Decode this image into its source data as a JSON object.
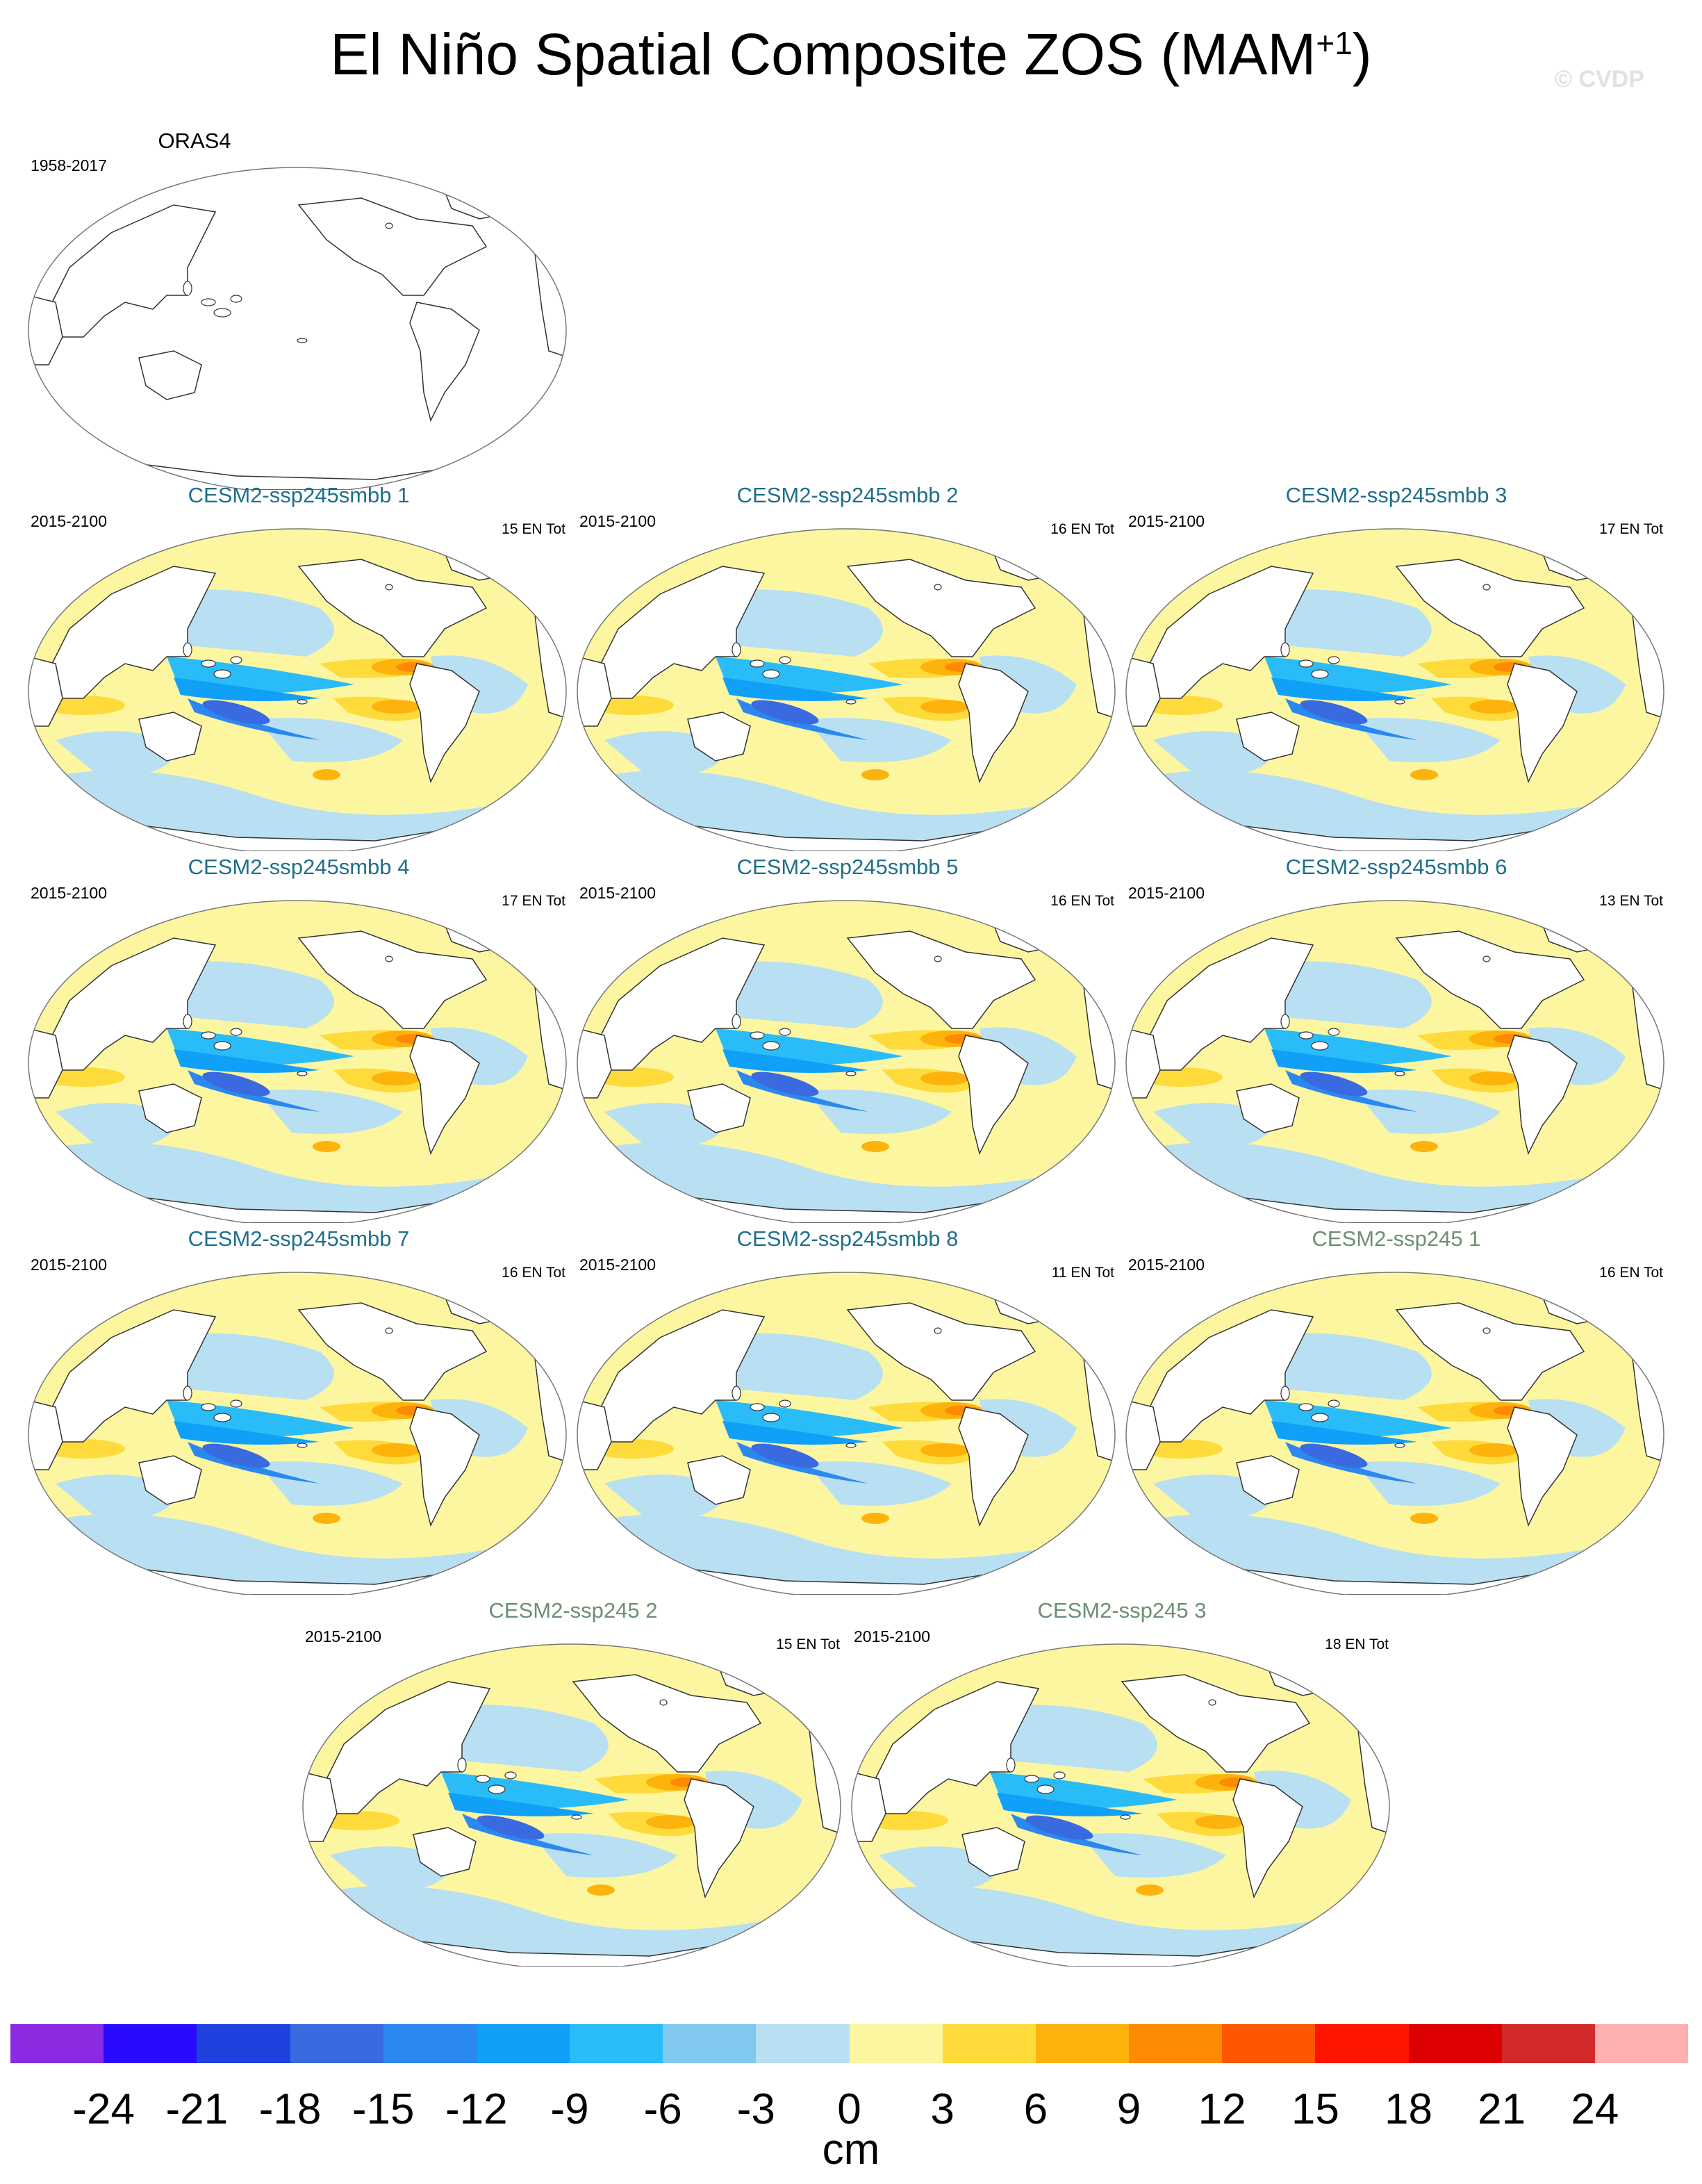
{
  "title": "El Niño Spatial Composite ZOS (MAM",
  "title_sup": "+1",
  "title_close": ")",
  "copyright": "© CVDP",
  "observation": {
    "title": "ORAS4",
    "years": "1958-2017",
    "en_tot": ""
  },
  "panels": [
    {
      "title": "CESM2-ssp245smbb 1",
      "years": "2015-2100",
      "en_tot": "15 EN Tot",
      "title_color": "#1f6f8b"
    },
    {
      "title": "CESM2-ssp245smbb 2",
      "years": "2015-2100",
      "en_tot": "16 EN Tot",
      "title_color": "#1f6f8b"
    },
    {
      "title": "CESM2-ssp245smbb 3",
      "years": "2015-2100",
      "en_tot": "17 EN Tot",
      "title_color": "#1f6f8b"
    },
    {
      "title": "CESM2-ssp245smbb 4",
      "years": "2015-2100",
      "en_tot": "17 EN Tot",
      "title_color": "#1f6f8b"
    },
    {
      "title": "CESM2-ssp245smbb 5",
      "years": "2015-2100",
      "en_tot": "16 EN Tot",
      "title_color": "#1f6f8b"
    },
    {
      "title": "CESM2-ssp245smbb 6",
      "years": "2015-2100",
      "en_tot": "13 EN Tot",
      "title_color": "#1f6f8b"
    },
    {
      "title": "CESM2-ssp245smbb 7",
      "years": "2015-2100",
      "en_tot": "16 EN Tot",
      "title_color": "#1f6f8b"
    },
    {
      "title": "CESM2-ssp245smbb 8",
      "years": "2015-2100",
      "en_tot": "11 EN Tot",
      "title_color": "#1f6f8b"
    },
    {
      "title": "CESM2-ssp245 1",
      "years": "2015-2100",
      "en_tot": "16 EN Tot",
      "title_color": "#6b8f74"
    },
    {
      "title": "CESM2-ssp245 2",
      "years": "2015-2100",
      "en_tot": "15 EN Tot",
      "title_color": "#6b8f74"
    },
    {
      "title": "CESM2-ssp245 3",
      "years": "2015-2100",
      "en_tot": "18 EN Tot",
      "title_color": "#6b8f74"
    }
  ],
  "colorbar": {
    "units": "cm",
    "labels": [
      "-24",
      "-21",
      "-18",
      "-15",
      "-12",
      "-9",
      "-6",
      "-3",
      "0",
      "3",
      "6",
      "9",
      "12",
      "15",
      "18",
      "21",
      "24"
    ],
    "colors": [
      "#8a2be2",
      "#2a0aff",
      "#2040e0",
      "#3a6ae0",
      "#2a88f0",
      "#10a0f8",
      "#2abcf8",
      "#80c8ee",
      "#b8e0f2",
      "#fdf6a0",
      "#fedb3a",
      "#fdb20c",
      "#fd8a00",
      "#fe5700",
      "#ff1400",
      "#dc0000",
      "#d22a2a",
      "#feb0b0"
    ]
  },
  "colors": {
    "land_outline": "#333333",
    "ocean_pos": "#fdf6a0",
    "ocean_neg": "#b8e0f2"
  }
}
